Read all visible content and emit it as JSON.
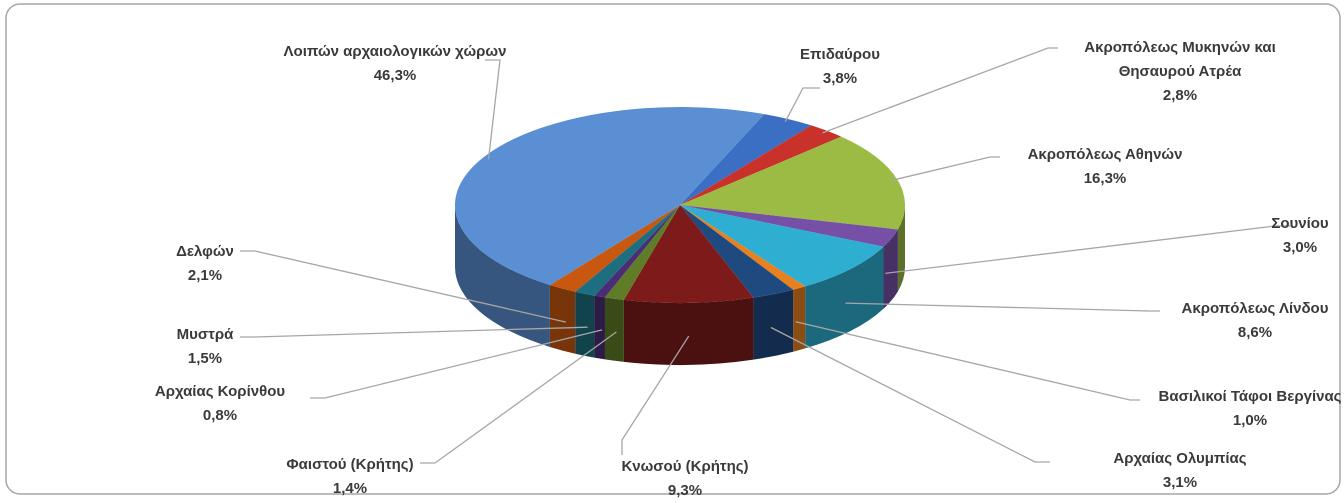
{
  "chart_data": {
    "type": "pie",
    "categories": [
      "Επιδαύρου",
      "Ακροπόλεως Μυκηνών και Θησαυρού Ατρέα",
      "Ακροπόλεως Αθηνών",
      "Σουνίου",
      "Ακροπόλεως Λίνδου",
      "Βασιλικοί Τάφοι Βεργίνας",
      "Αρχαίας Ολυμπίας",
      "Κνωσού (Κρήτης)",
      "Φαιστού (Κρήτης)",
      "Αρχαίας Κορίνθου",
      "Μυστρά",
      "Δελφών",
      "Λοιπών αρχαιολογικών χώρων"
    ],
    "values": [
      3.8,
      2.8,
      16.3,
      3.0,
      8.6,
      1.0,
      3.1,
      9.3,
      1.4,
      0.8,
      1.5,
      2.1,
      46.3
    ],
    "value_labels": [
      "3,8%",
      "2,8%",
      "16,3%",
      "3,0%",
      "8,6%",
      "1,0%",
      "3,1%",
      "9,3%",
      "1,4%",
      "0,8%",
      "1,5%",
      "2,1%",
      "46,3%"
    ],
    "colors": [
      "#3a6fc4",
      "#c9322b",
      "#9bbb45",
      "#7550a6",
      "#2eaed0",
      "#e8801e",
      "#1f4a80",
      "#7d1a1a",
      "#5f7d26",
      "#4a2d75",
      "#1d6f80",
      "#c8580f",
      "#5b8fd4"
    ]
  }
}
